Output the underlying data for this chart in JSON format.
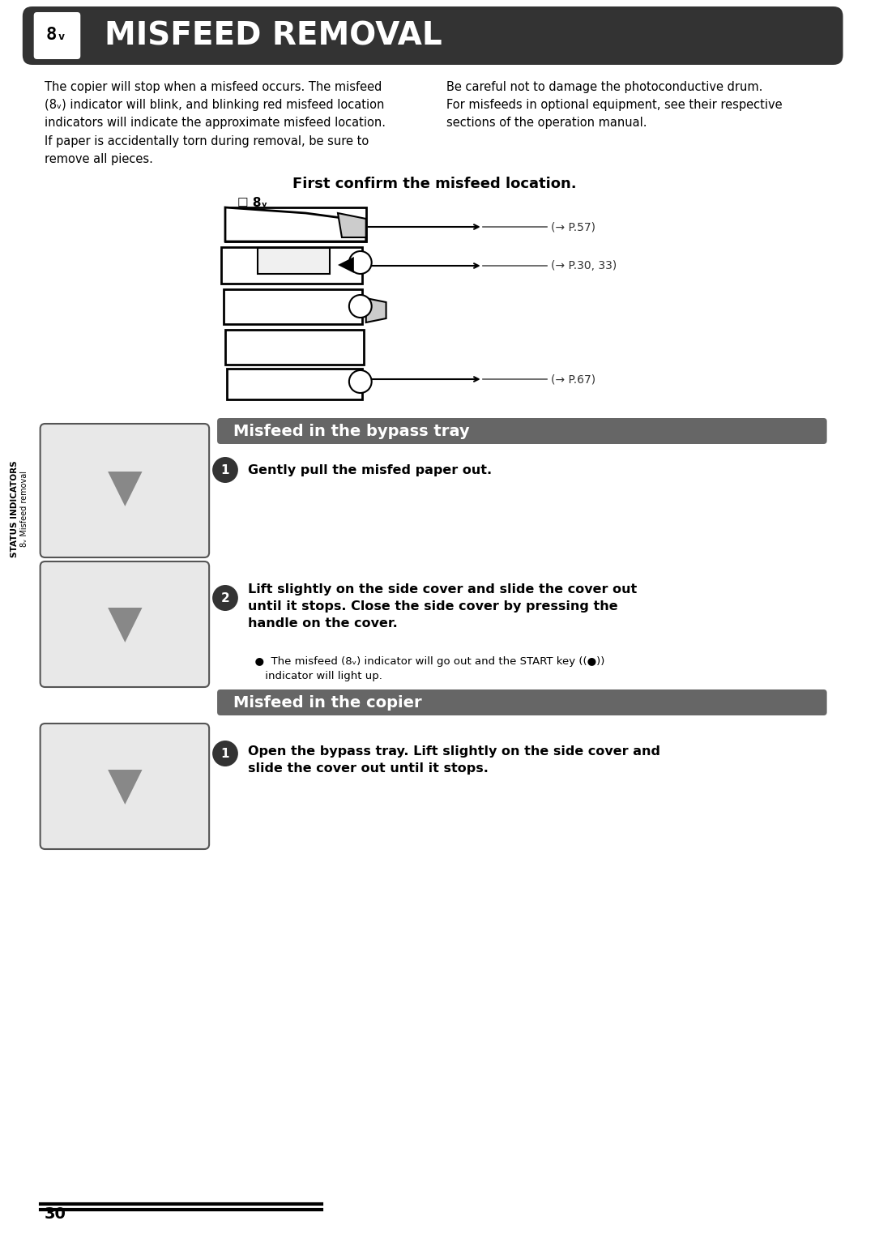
{
  "bg_color": "#ffffff",
  "header_bg": "#333333",
  "header_text": "MISFEED REMOVAL",
  "header_text_color": "#ffffff",
  "header_icon_bg": "#ffffff",
  "section_bar_color": "#666666",
  "section_bar_text_color": "#ffffff",
  "body_text_color": "#000000",
  "page_number": "30",
  "left_col_text": "The copier will stop when a misfeed occurs. The misfeed\n(蓸▽) indicator will blink, and blinking red misfeed location\nindicators will indicate the approximate misfeed location.\nIf paper is accidentally torn during removal, be sure to\nremove all pieces.",
  "right_col_text": "Be careful not to damage the photoconductive drum.\nFor misfeeds in optional equipment, see their respective\nsections of the operation manual.",
  "confirm_title": "First confirm the misfeed location.",
  "arrow_labels": [
    "(→ P.57)",
    "(→ P.30, 33)",
    "(→ P.67)"
  ],
  "bypass_section_title": "Misfeed in the bypass tray",
  "bypass_step1_bold": "Gently pull the misfed paper out.",
  "copier_section_title": "Misfeed in the copier",
  "copier_step1_bold": "Open the bypass tray. Lift slightly on the side cover and\nslide the cover out until it stops.",
  "step2_bold": "Lift slightly on the side cover and slide the cover out\nuntil it stops. Close the side cover by pressing the\nhandle on the cover.",
  "step2_bullet": "The misfeed (蓸▽) indicator will go out and the START key ((●)) indicator will light up.",
  "sidebar_text": "STATUS INDICATORS",
  "sidebar_sub": "蓸▽ Misfeed removal",
  "font_size_header": 28,
  "font_size_section": 14,
  "font_size_body": 10.5,
  "font_size_confirm": 13
}
